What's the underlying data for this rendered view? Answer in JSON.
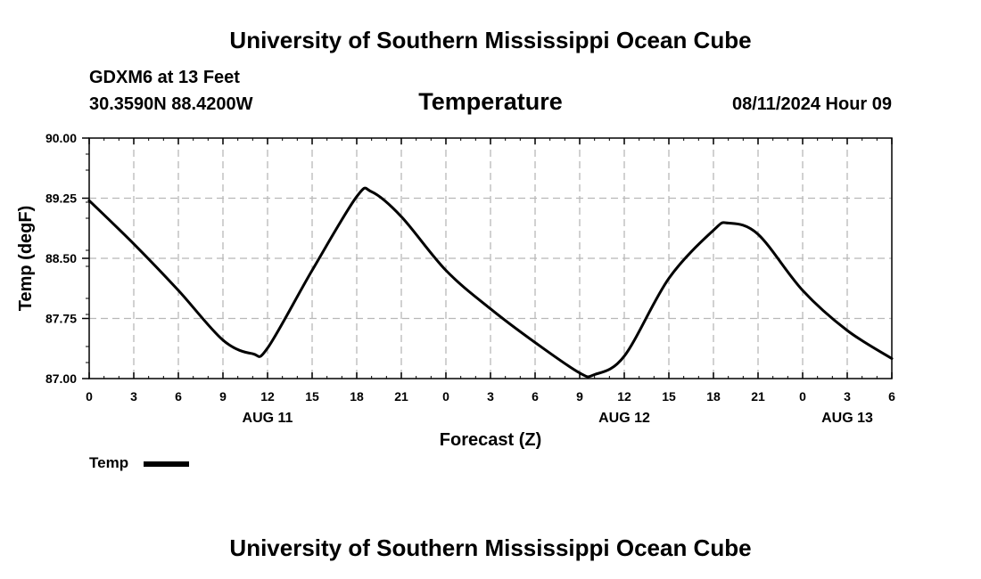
{
  "page": {
    "top_title": "University of Southern Mississippi Ocean Cube",
    "bottom_title": "University of Southern Mississippi Ocean Cube",
    "station": "GDXM6 at 13 Feet",
    "coords": "30.3590N  88.4200W",
    "datetime": "08/11/2024 Hour 09"
  },
  "chart_data": {
    "type": "line",
    "title": "Temperature",
    "xlabel": "Forecast (Z)",
    "ylabel": "Temp (degF)",
    "xlim": [
      0,
      54
    ],
    "ylim": [
      87.0,
      90.0
    ],
    "grid": true,
    "y_ticks": [
      87.0,
      87.75,
      88.5,
      89.25,
      90.0
    ],
    "y_tick_labels": [
      "87.00",
      "87.75",
      "88.50",
      "89.25",
      "90.00"
    ],
    "x_ticks": [
      0,
      3,
      6,
      9,
      12,
      15,
      18,
      21,
      24,
      27,
      30,
      33,
      36,
      39,
      42,
      45,
      48,
      51,
      54
    ],
    "x_tick_labels": [
      "0",
      "3",
      "6",
      "9",
      "12",
      "15",
      "18",
      "21",
      "0",
      "3",
      "6",
      "9",
      "12",
      "15",
      "18",
      "21",
      "0",
      "3",
      "6"
    ],
    "date_labels": [
      {
        "x": 12,
        "label": "AUG 11"
      },
      {
        "x": 36,
        "label": "AUG 12"
      },
      {
        "x": 51,
        "label": "AUG 13"
      }
    ],
    "legend": {
      "label": "Temp",
      "placement": "bottom-left"
    },
    "series": [
      {
        "name": "Temp",
        "color": "#000000",
        "x": [
          0,
          3,
          6,
          9,
          11,
          12,
          15,
          18,
          19,
          21,
          24,
          27,
          30,
          33,
          34,
          36,
          39,
          42,
          43,
          45,
          48,
          51,
          54
        ],
        "values": [
          89.22,
          88.68,
          88.1,
          87.48,
          87.31,
          87.38,
          88.35,
          89.27,
          89.33,
          89.02,
          88.35,
          87.87,
          87.45,
          87.07,
          87.05,
          87.28,
          88.25,
          88.85,
          88.94,
          88.8,
          88.1,
          87.6,
          87.25
        ]
      }
    ]
  }
}
